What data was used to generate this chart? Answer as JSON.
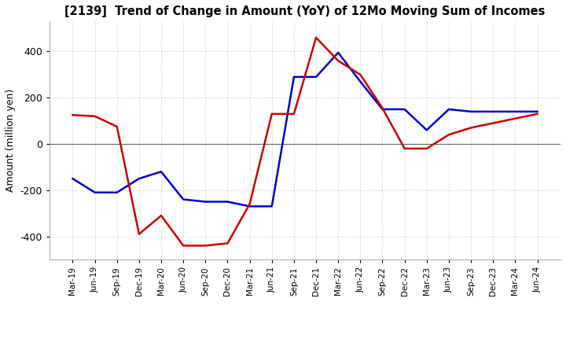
{
  "title": "[2139]  Trend of Change in Amount (YoY) of 12Mo Moving Sum of Incomes",
  "ylabel": "Amount (million yen)",
  "ylim": [
    -500,
    530
  ],
  "yticks": [
    -400,
    -200,
    0,
    200,
    400
  ],
  "background_color": "#ffffff",
  "grid_color": "#b0b0b0",
  "ordinary_income_color": "#0000cc",
  "net_income_color": "#cc0000",
  "x_labels": [
    "Mar-19",
    "Jun-19",
    "Sep-19",
    "Dec-19",
    "Mar-20",
    "Jun-20",
    "Sep-20",
    "Dec-20",
    "Mar-21",
    "Jun-21",
    "Sep-21",
    "Dec-21",
    "Mar-22",
    "Jun-22",
    "Sep-22",
    "Dec-22",
    "Mar-23",
    "Jun-23",
    "Sep-23",
    "Dec-23",
    "Mar-24",
    "Jun-24"
  ],
  "ordinary_income": [
    -150,
    -210,
    -210,
    -150,
    -120,
    -240,
    -250,
    -250,
    -270,
    -270,
    290,
    290,
    395,
    270,
    150,
    150,
    60,
    150,
    140,
    140,
    140,
    140
  ],
  "net_income": [
    125,
    120,
    75,
    -390,
    -310,
    -440,
    -440,
    -430,
    -260,
    130,
    130,
    460,
    360,
    300,
    155,
    -20,
    -20,
    40,
    70,
    90,
    110,
    130
  ]
}
